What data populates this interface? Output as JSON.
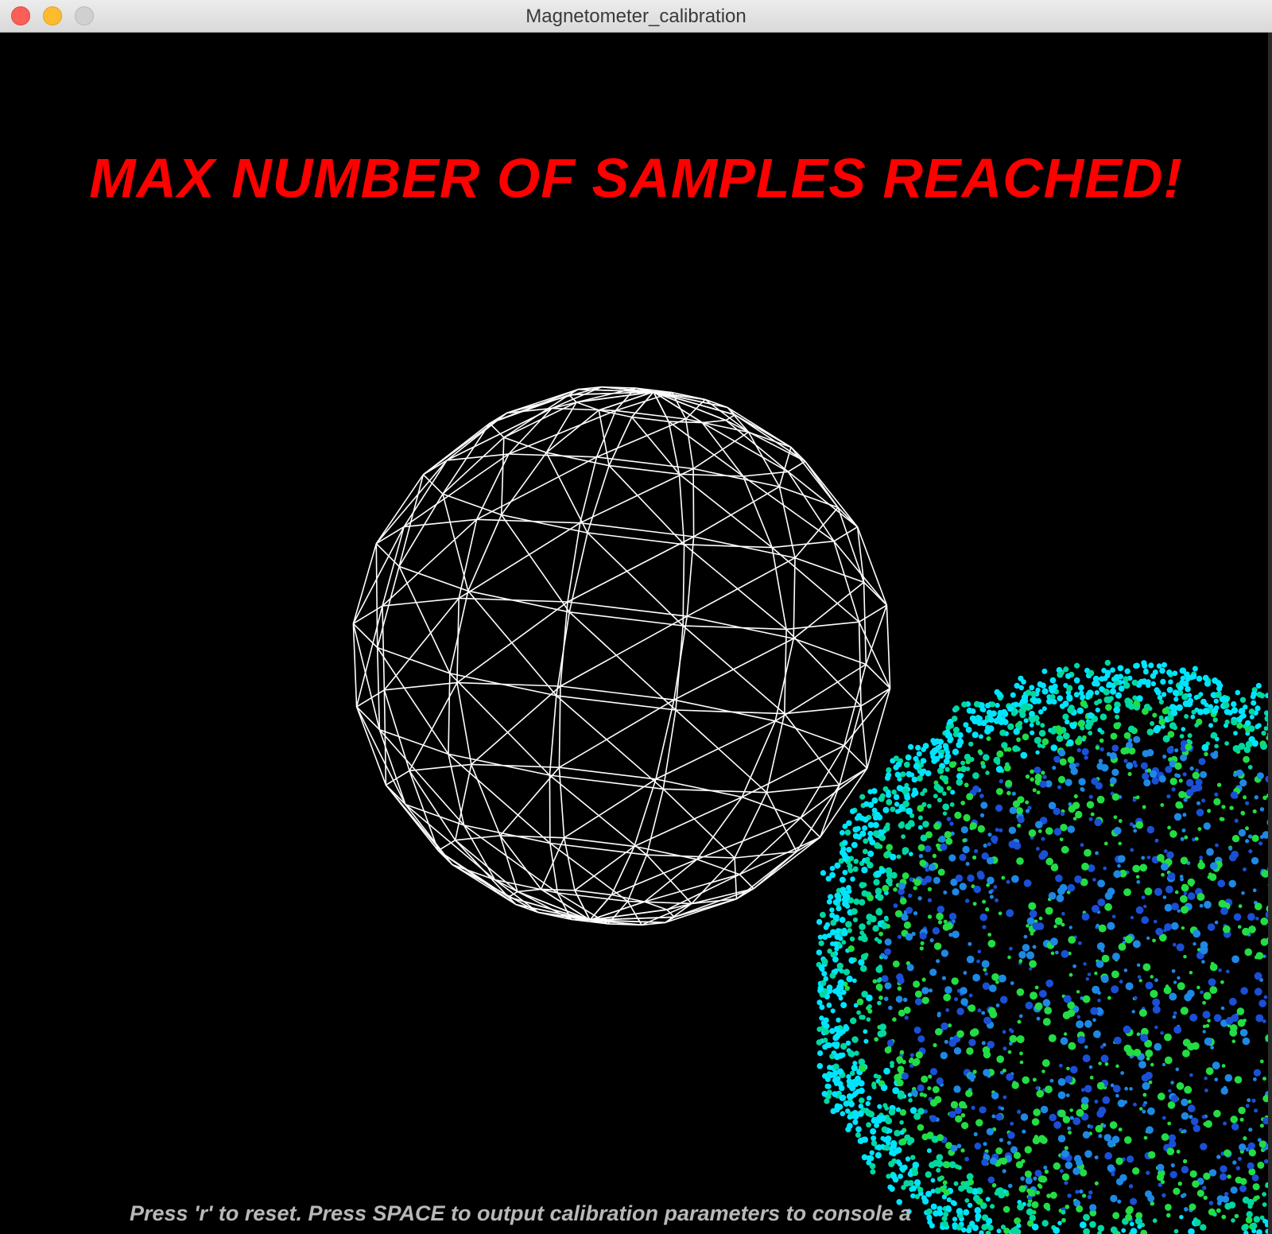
{
  "window": {
    "title": "Magnetometer_calibration"
  },
  "viewport": {
    "status_message": "MAX NUMBER OF SAMPLES REACHED!",
    "help_text": "Press 'r' to reset. Press SPACE to output calibration parameters to console a",
    "background_color": "#000000",
    "status_color": "#ff0000",
    "wireframe_color": "#ffffff",
    "sample_colors": [
      "#00e5ff",
      "#00d8a0",
      "#22dd44",
      "#1e88e5",
      "#1a4fd6"
    ]
  }
}
